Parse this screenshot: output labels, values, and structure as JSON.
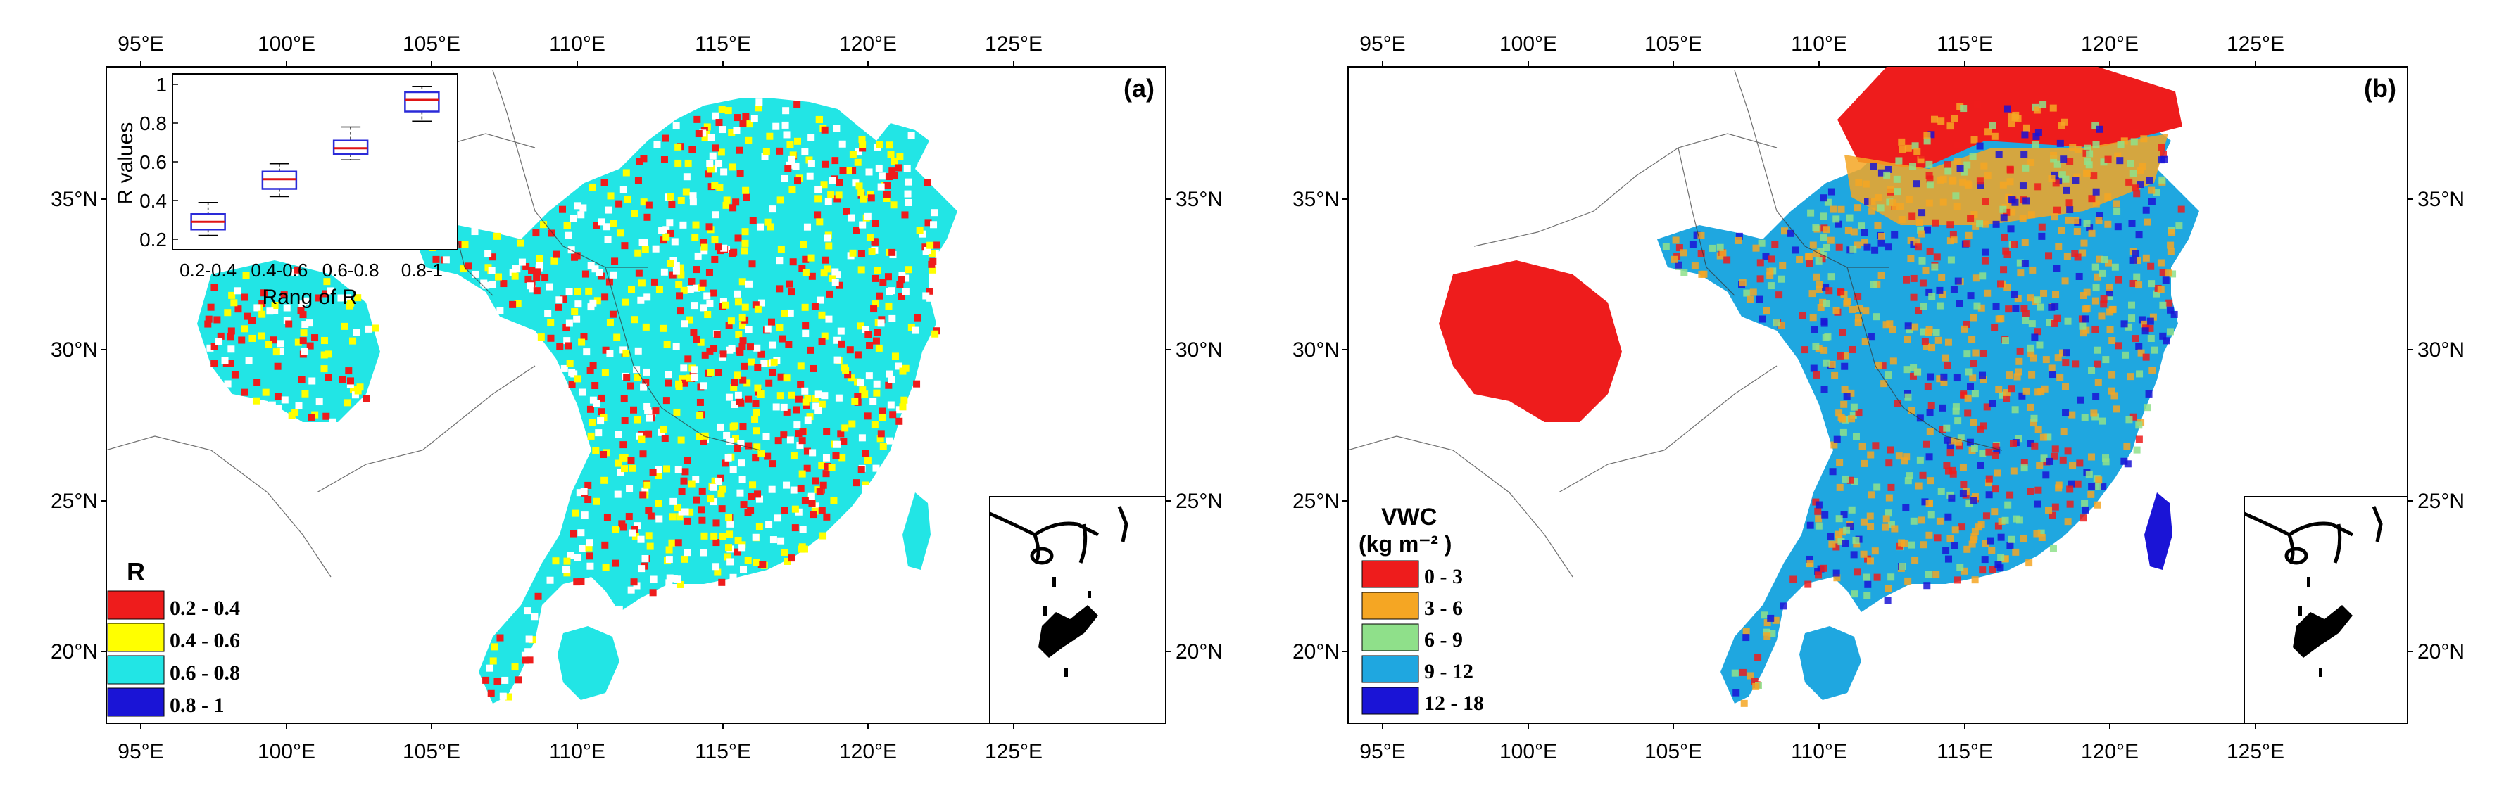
{
  "figure": {
    "panels": [
      {
        "id": "a",
        "label": "(a)",
        "legend_title": "R",
        "legend_title_unit": "",
        "legend": [
          {
            "label": "0.2 - 0.4",
            "color": "#ee1c1c"
          },
          {
            "label": "0.4 - 0.6",
            "color": "#ffff00"
          },
          {
            "label": "0.6 - 0.8",
            "color": "#22e5e5"
          },
          {
            "label": "0.8 - 1",
            "color": "#1a14d6"
          }
        ]
      },
      {
        "id": "b",
        "label": "(b)",
        "legend_title": "VWC",
        "legend_title_unit": "(kg m⁻² )",
        "legend": [
          {
            "label": "0 - 3",
            "color": "#ee1c1c"
          },
          {
            "label": "3 - 6",
            "color": "#f5a623"
          },
          {
            "label": "6 - 9",
            "color": "#8fe08a"
          },
          {
            "label": "9 - 12",
            "color": "#1fa7e0"
          },
          {
            "label": "12 - 18",
            "color": "#1a14d6"
          }
        ]
      }
    ],
    "lon_ticks": [
      "95°E",
      "100°E",
      "105°E",
      "110°E",
      "115°E",
      "120°E",
      "125°E"
    ],
    "lat_ticks": [
      "35°N",
      "30°N",
      "25°N",
      "20°N"
    ]
  },
  "chart_data": {
    "type": "boxplot",
    "title": "",
    "xlabel": "Rang of R",
    "ylabel": "R values",
    "categories": [
      "0.2-0.4",
      "0.4-0.6",
      "0.6-0.8",
      "0.8-1"
    ],
    "ylim": [
      0.2,
      1.0
    ],
    "yticks": [
      "0.2",
      "0.4",
      "0.6",
      "0.8",
      "1"
    ],
    "boxes": [
      {
        "min": 0.22,
        "q1": 0.25,
        "median": 0.29,
        "q3": 0.33,
        "max": 0.39
      },
      {
        "min": 0.42,
        "q1": 0.46,
        "median": 0.51,
        "q3": 0.55,
        "max": 0.59
      },
      {
        "min": 0.61,
        "q1": 0.64,
        "median": 0.67,
        "q3": 0.71,
        "max": 0.78
      },
      {
        "min": 0.81,
        "q1": 0.86,
        "median": 0.92,
        "q3": 0.96,
        "max": 0.99
      }
    ]
  }
}
